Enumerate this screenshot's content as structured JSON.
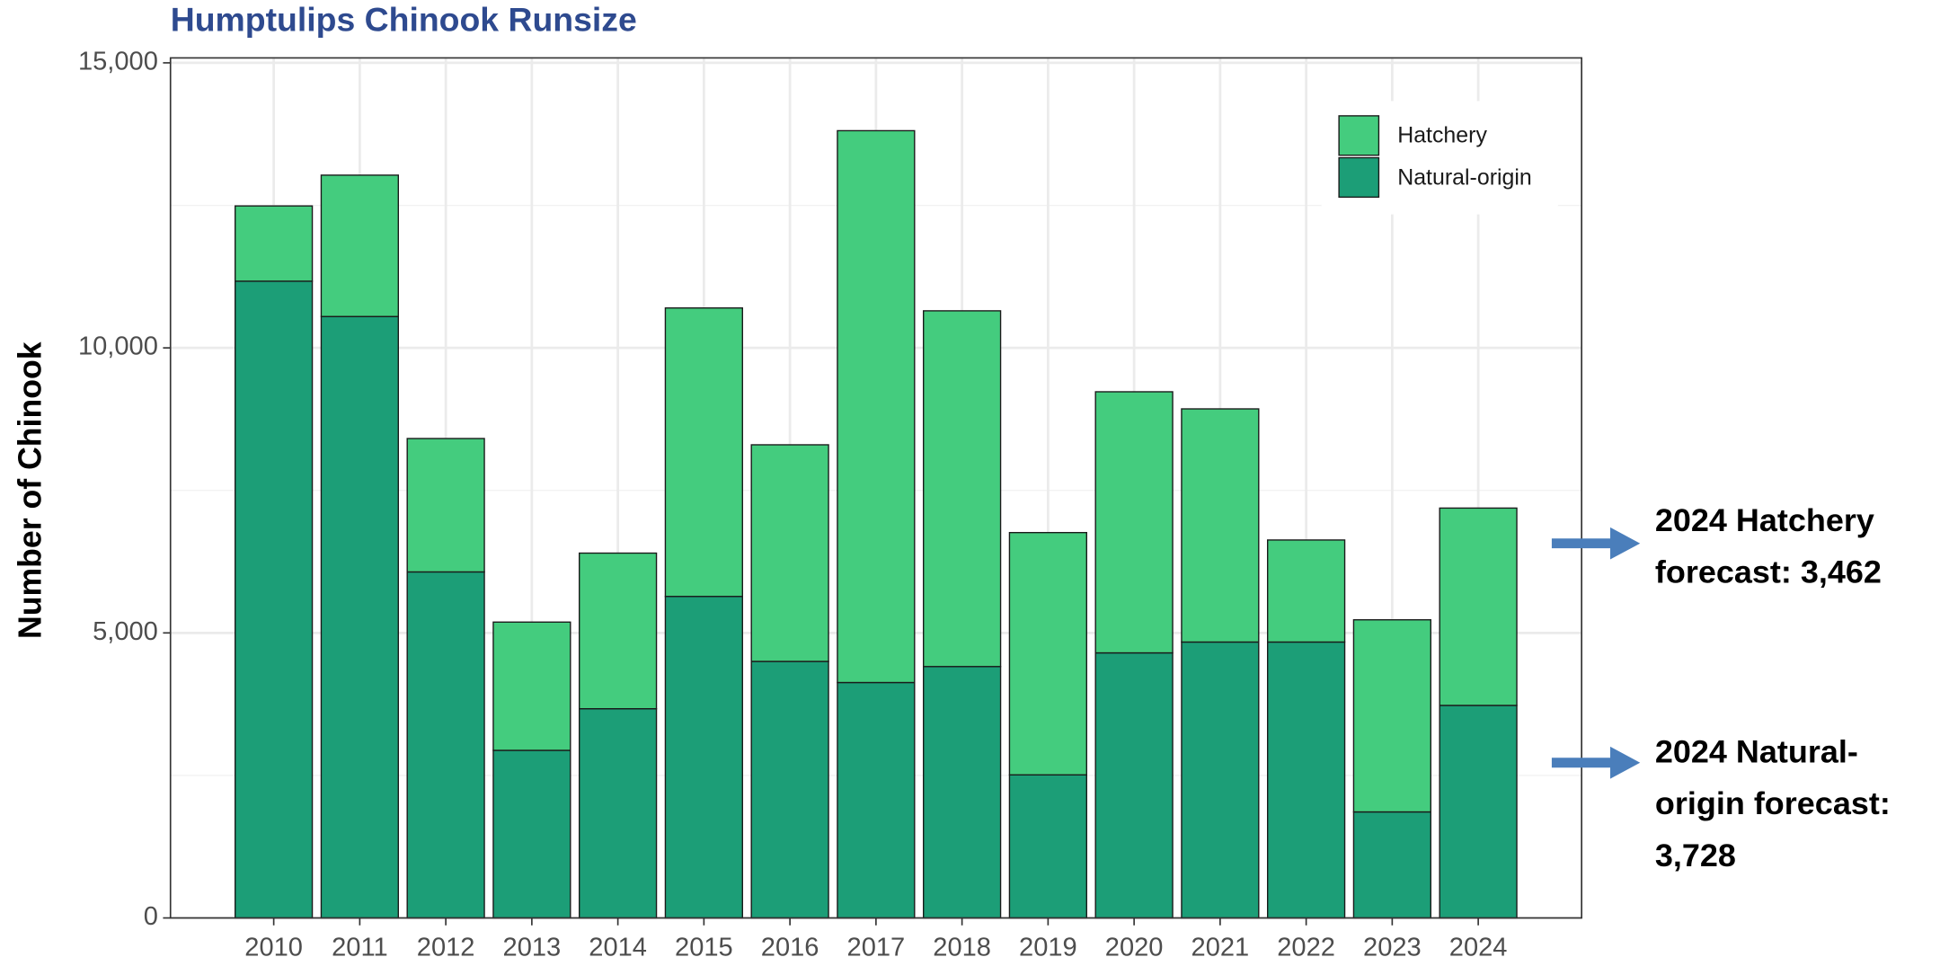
{
  "chart_data": {
    "type": "stacked_bar",
    "title": "Humptulips Chinook Runsize",
    "y_label": "Number of Chinook",
    "categories": [
      "2010",
      "2011",
      "2012",
      "2013",
      "2014",
      "2015",
      "2016",
      "2017",
      "2018",
      "2019",
      "2020",
      "2021",
      "2022",
      "2023",
      "2024"
    ],
    "series": [
      {
        "name": "Hatchery",
        "color": "#44cc7e",
        "values": [
          1320,
          2480,
          2340,
          2250,
          2730,
          5060,
          3800,
          9680,
          6240,
          4250,
          4580,
          4090,
          1790,
          3370,
          3462
        ]
      },
      {
        "name": "Natural-origin",
        "color": "#1c9e77",
        "values": [
          11170,
          10550,
          6070,
          2940,
          3670,
          5640,
          4500,
          4130,
          4410,
          2510,
          4650,
          4840,
          4840,
          1860,
          3728
        ]
      }
    ],
    "ylim": [
      0,
      15000
    ],
    "yticks": [
      0,
      {
        "value": 5000,
        "label": "5,000"
      },
      {
        "value": 10000,
        "label": "10,000"
      },
      {
        "value": 15000,
        "label": "15,000"
      }
    ],
    "y_minor_ticks": [
      2500,
      7500,
      12500
    ],
    "grid": true,
    "legend": "top-right",
    "annotations": [
      {
        "lines": [
          "2024 Hatchery",
          "forecast: 3,462"
        ]
      },
      {
        "lines": [
          "2024 Natural-",
          "origin forecast:",
          "3,728"
        ]
      }
    ]
  }
}
